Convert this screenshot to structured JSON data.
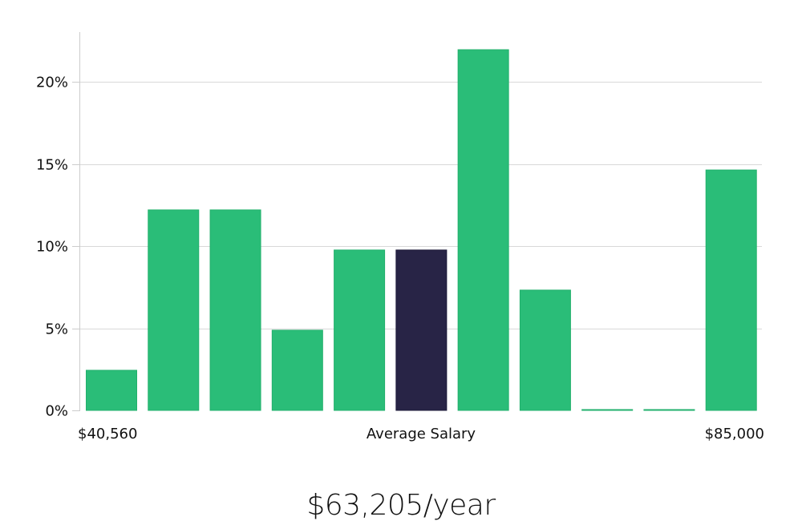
{
  "chart_data": {
    "type": "bar",
    "title": "",
    "xlabel": "Average Salary",
    "ylabel": "",
    "x_range_labels": [
      "$40,560",
      "$85,000"
    ],
    "categories": [
      "1",
      "2",
      "3",
      "4",
      "5",
      "6",
      "7",
      "8",
      "9",
      "10",
      "11"
    ],
    "values": [
      2.44,
      12.2,
      12.2,
      4.88,
      9.76,
      9.76,
      21.95,
      7.32,
      0,
      0,
      14.63
    ],
    "highlight_index": 5,
    "ylim": [
      0,
      23
    ],
    "yticks": [
      0,
      5,
      10,
      15,
      20
    ],
    "ytick_labels": [
      "0%",
      "5%",
      "10%",
      "15%",
      "20%"
    ],
    "grid": true,
    "colors": {
      "bar": "#2abd78",
      "bar_stroke": "#22b06c",
      "highlight": "#282446",
      "grid": "#d9d9d9",
      "axis": "#cccccc"
    }
  },
  "salary_label": "$63,205/year"
}
